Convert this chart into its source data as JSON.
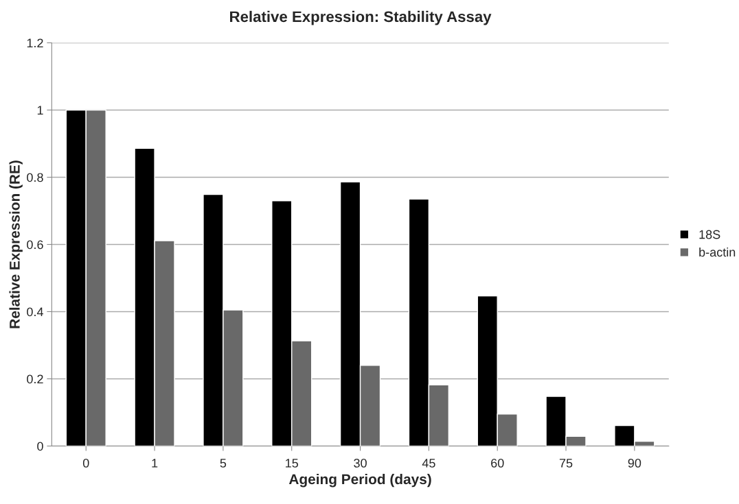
{
  "chart_data": {
    "type": "bar",
    "title": "Relative Expression: Stability Assay",
    "xlabel": "Ageing Period (days)",
    "ylabel": "Relative Expression (RE)",
    "categories": [
      "0",
      "1",
      "5",
      "15",
      "30",
      "45",
      "60",
      "75",
      "90"
    ],
    "series": [
      {
        "name": "18S",
        "color": "#000000",
        "values": [
          1.0,
          0.886,
          0.749,
          0.73,
          0.786,
          0.735,
          0.447,
          0.148,
          0.061
        ]
      },
      {
        "name": "b-actin",
        "color": "#696969",
        "values": [
          1.0,
          0.611,
          0.405,
          0.313,
          0.24,
          0.182,
          0.095,
          0.029,
          0.014
        ]
      }
    ],
    "ylim": [
      0,
      1.2
    ],
    "yticks": [
      0,
      0.2,
      0.4,
      0.6,
      0.8,
      1,
      1.2
    ],
    "grid": "y",
    "legend": "right"
  }
}
